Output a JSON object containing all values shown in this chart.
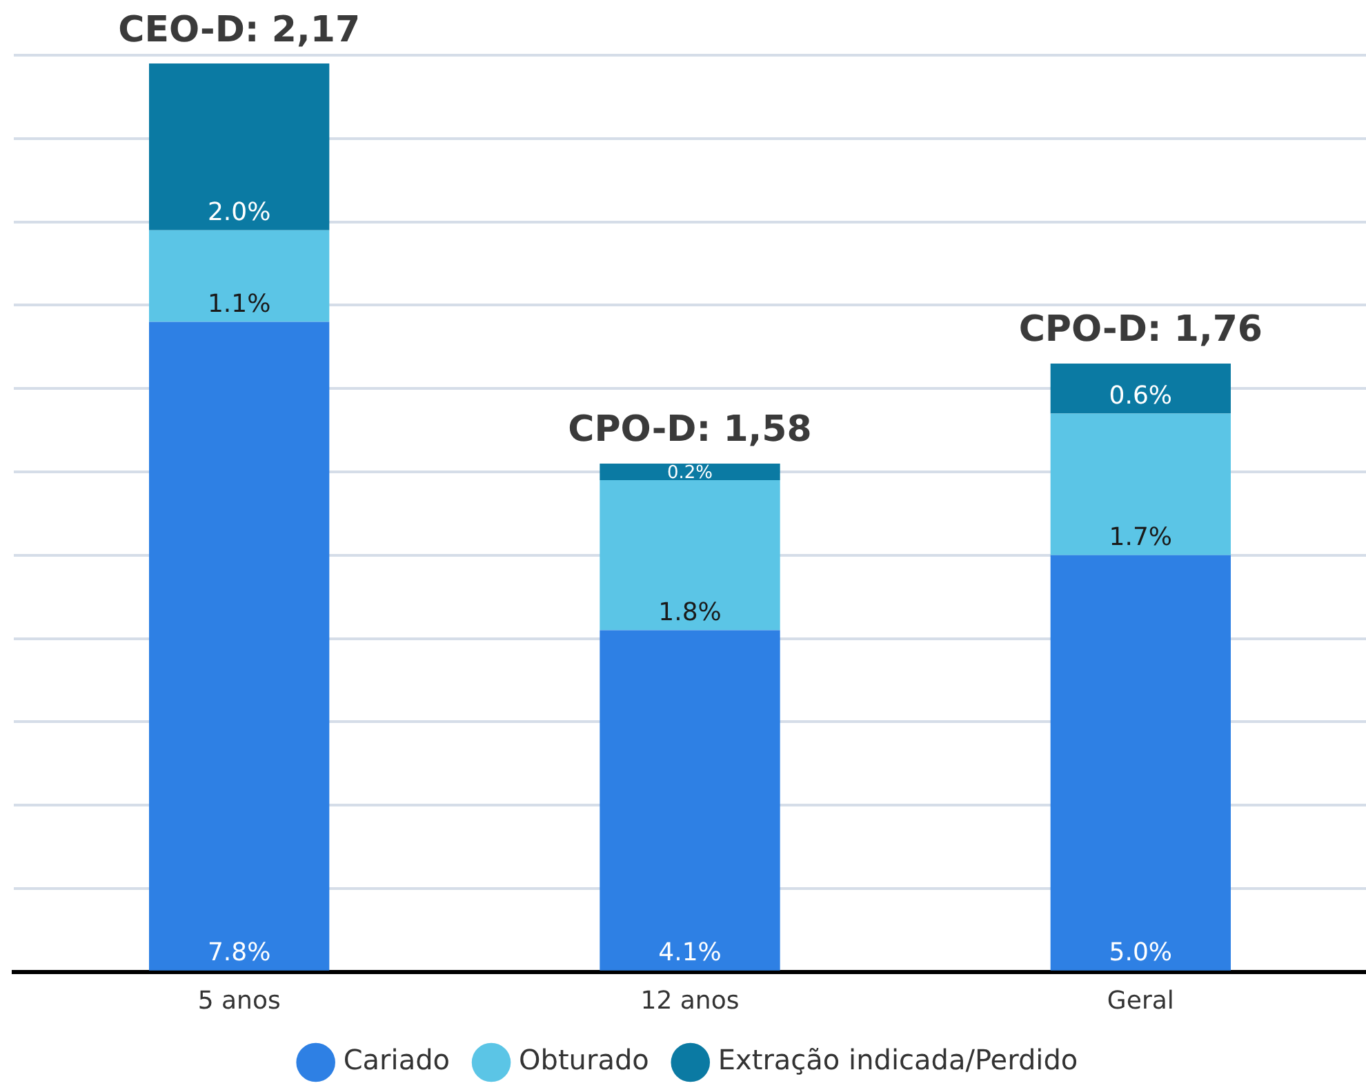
{
  "chart_data": {
    "type": "bar",
    "stacked": true,
    "categories": [
      "5 anos",
      "12 anos",
      "Geral"
    ],
    "series": [
      {
        "name": "Cariado",
        "color": "#2e80e4",
        "values": [
          7.8,
          4.1,
          5.0
        ],
        "value_labels": [
          "7.8%",
          "4.1%",
          "5.0%"
        ]
      },
      {
        "name": "Obturado",
        "color": "#5bc5e6",
        "values": [
          1.1,
          1.8,
          1.7
        ],
        "value_labels": [
          "1.1%",
          "1.8%",
          "1.7%"
        ]
      },
      {
        "name": "Extração indicada/Perdido",
        "color": "#0b7aa3",
        "values": [
          2.0,
          0.2,
          0.6
        ],
        "value_labels": [
          "2.0%",
          "0.2%",
          "0.6%"
        ]
      }
    ],
    "annotations": [
      {
        "text": "CEO-D: 2,17",
        "x": "5 anos",
        "y": 10.9
      },
      {
        "text": "CPO-D: 1,58",
        "x": "12 anos",
        "y": 6.1
      },
      {
        "text": "CPO-D: 1,76",
        "x": "Geral",
        "y": 7.3
      }
    ],
    "tick_labels": "x",
    "grid": "y",
    "legend": "bottom"
  }
}
